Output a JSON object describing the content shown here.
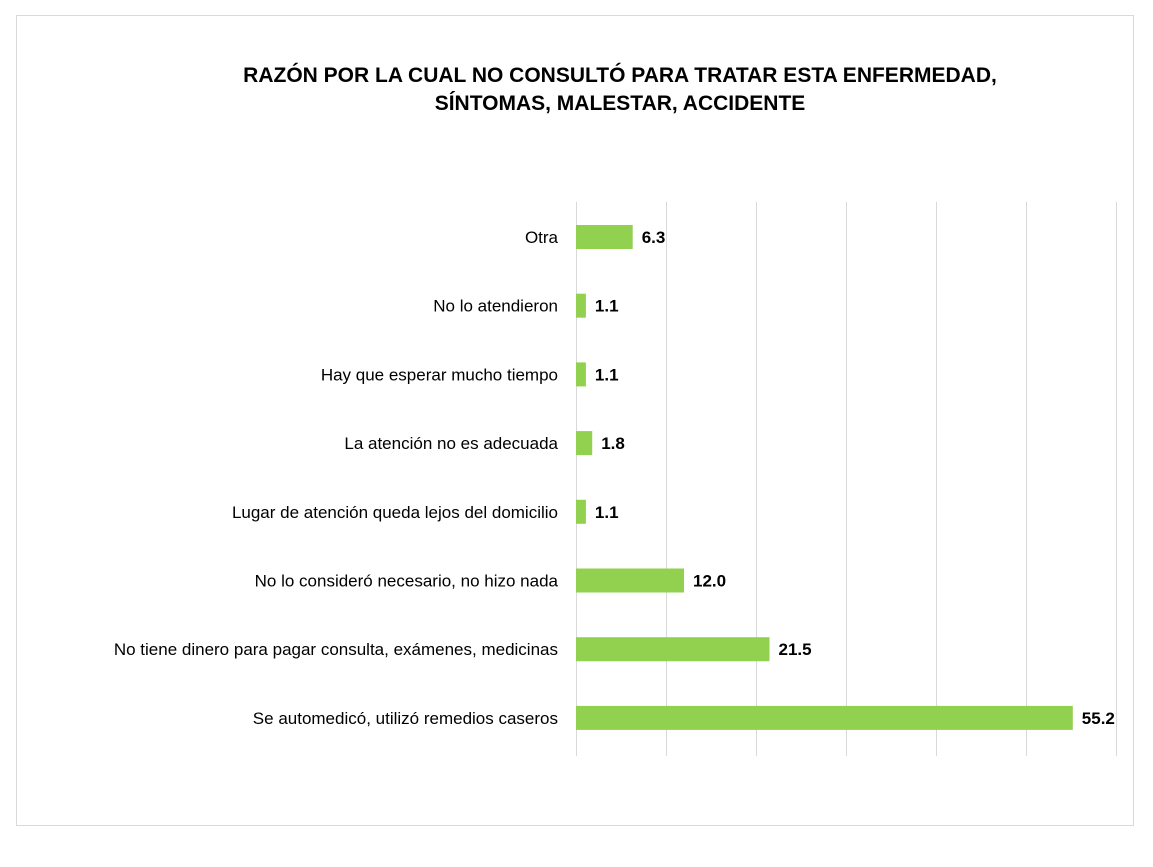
{
  "chart_data": {
    "type": "bar",
    "orientation": "horizontal",
    "title": [
      "RAZÓN POR LA CUAL NO CONSULTÓ PARA TRATAR ESTA ENFERMEDAD,",
      "SÍNTOMAS, MALESTAR, ACCIDENTE"
    ],
    "categories": [
      "Otra",
      "No lo atendieron",
      "Hay que esperar mucho tiempo",
      "La atención no es adecuada",
      "Lugar de atención queda lejos del domicilio",
      "No lo consideró necesario, no hizo nada",
      "No tiene dinero para pagar consulta, exámenes, medicinas",
      "Se automedicó, utilizó remedios caseros"
    ],
    "values": [
      6.3,
      1.1,
      1.1,
      1.8,
      1.1,
      12.0,
      21.5,
      55.2
    ],
    "value_labels": [
      "6.3",
      "1.1",
      "1.1",
      "1.8",
      "1.1",
      "12.0",
      "21.5",
      "55.2"
    ],
    "xlim": [
      0,
      60
    ],
    "grid_step": 10,
    "grid": true,
    "xlabel": "",
    "ylabel": "",
    "bar_color": "#92d050",
    "grid_color": "#d9d9d9"
  }
}
